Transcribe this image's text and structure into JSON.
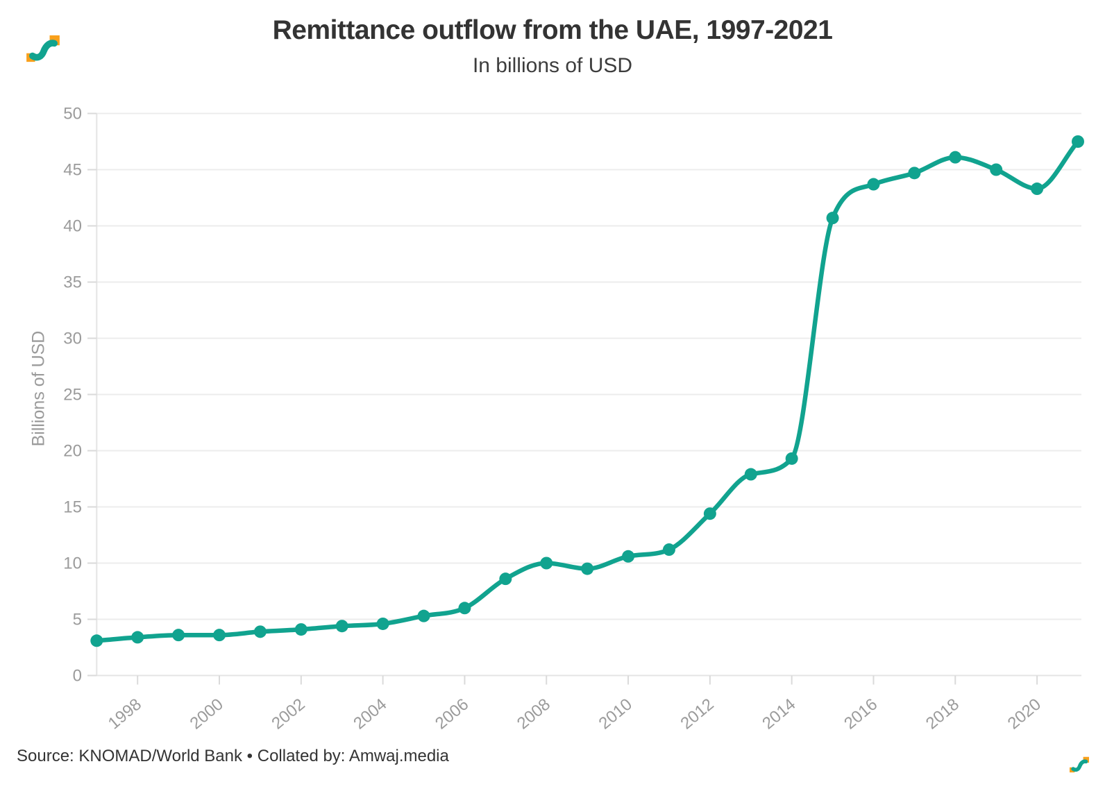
{
  "colors": {
    "accent_teal": "#11a38f",
    "logo_orange": "#f9a01b",
    "gridline": "#ececec",
    "axis_line": "#e4e4e4",
    "tick_mark": "#dadada",
    "axis_text": "#9b9b9b",
    "title_text": "#333333",
    "subtitle_text": "#3d3d3d",
    "source_text": "#333333"
  },
  "footer": {
    "source": "Source: KNOMAD/World Bank • Collated by: Amwaj.media"
  },
  "icons": {
    "header_logo": "amwaj-wave-logo",
    "footer_logo": "amwaj-wave-logo"
  },
  "chart_data": {
    "type": "line",
    "title": "Remittance outflow from the UAE, 1997-2021",
    "subtitle": "In billions of USD",
    "xlabel": "",
    "ylabel": "Billions of USD",
    "x": [
      1997,
      1998,
      1999,
      2000,
      2001,
      2002,
      2003,
      2004,
      2005,
      2006,
      2007,
      2008,
      2009,
      2010,
      2011,
      2012,
      2013,
      2014,
      2015,
      2016,
      2017,
      2018,
      2019,
      2020,
      2021
    ],
    "series": [
      {
        "name": "Remittance outflow (billions USD)",
        "values": [
          3.1,
          3.4,
          3.6,
          3.6,
          3.9,
          4.1,
          4.4,
          4.6,
          5.3,
          6.0,
          8.6,
          10.0,
          9.5,
          10.6,
          11.2,
          14.4,
          17.9,
          19.3,
          40.7,
          43.7,
          44.7,
          46.1,
          45.0,
          43.3,
          47.5
        ]
      }
    ],
    "ylim": [
      0,
      50
    ],
    "y_ticks": [
      0,
      5,
      10,
      15,
      20,
      25,
      30,
      35,
      40,
      45,
      50
    ],
    "x_tick_labels": [
      1998,
      2000,
      2002,
      2004,
      2006,
      2008,
      2010,
      2012,
      2014,
      2016,
      2018,
      2020
    ],
    "grid": "horizontal",
    "legend_position": "none",
    "curve": "monotone",
    "markers": true
  }
}
